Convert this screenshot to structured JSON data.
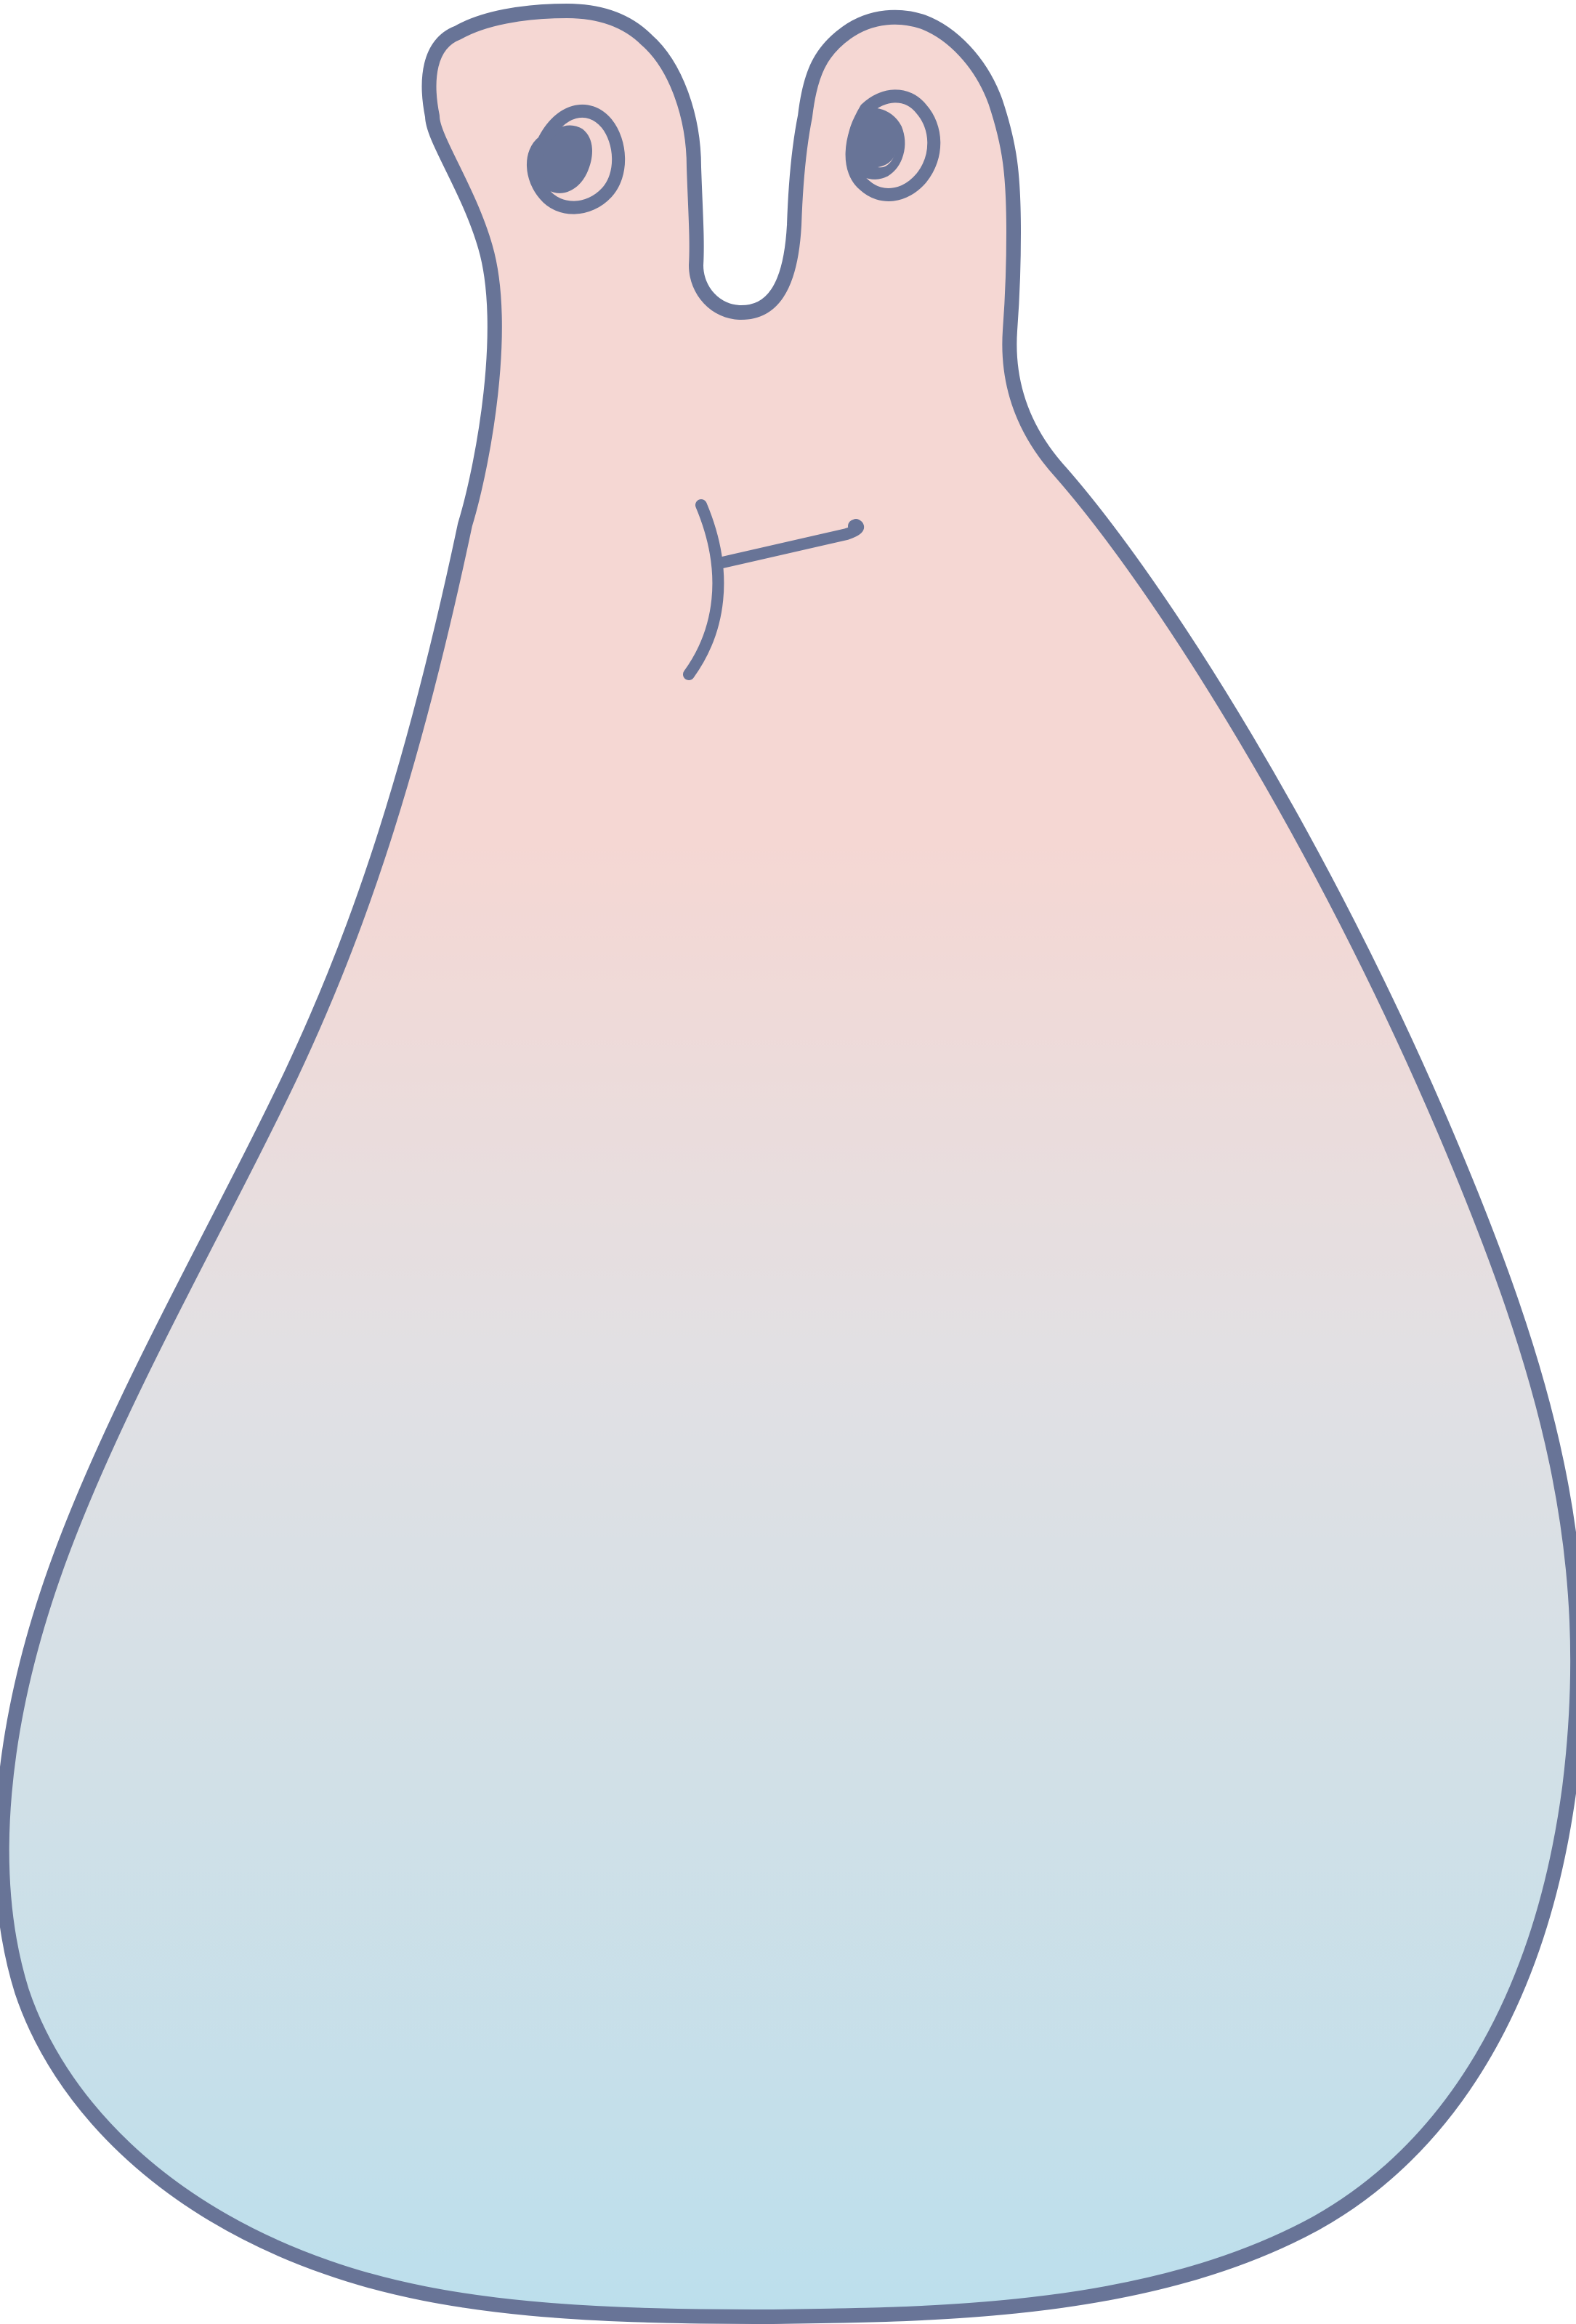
{
  "illustration": {
    "subject": "creature-character",
    "colors": {
      "outline": "#687497",
      "fill_top": "#f5d7d3",
      "fill_mid": "#e2e0e3",
      "fill_bottom": "#bcdfec",
      "eye_fill": "#687497"
    },
    "parts": [
      "body",
      "left-ear",
      "right-ear",
      "left-eye",
      "right-eye",
      "mouth"
    ]
  }
}
